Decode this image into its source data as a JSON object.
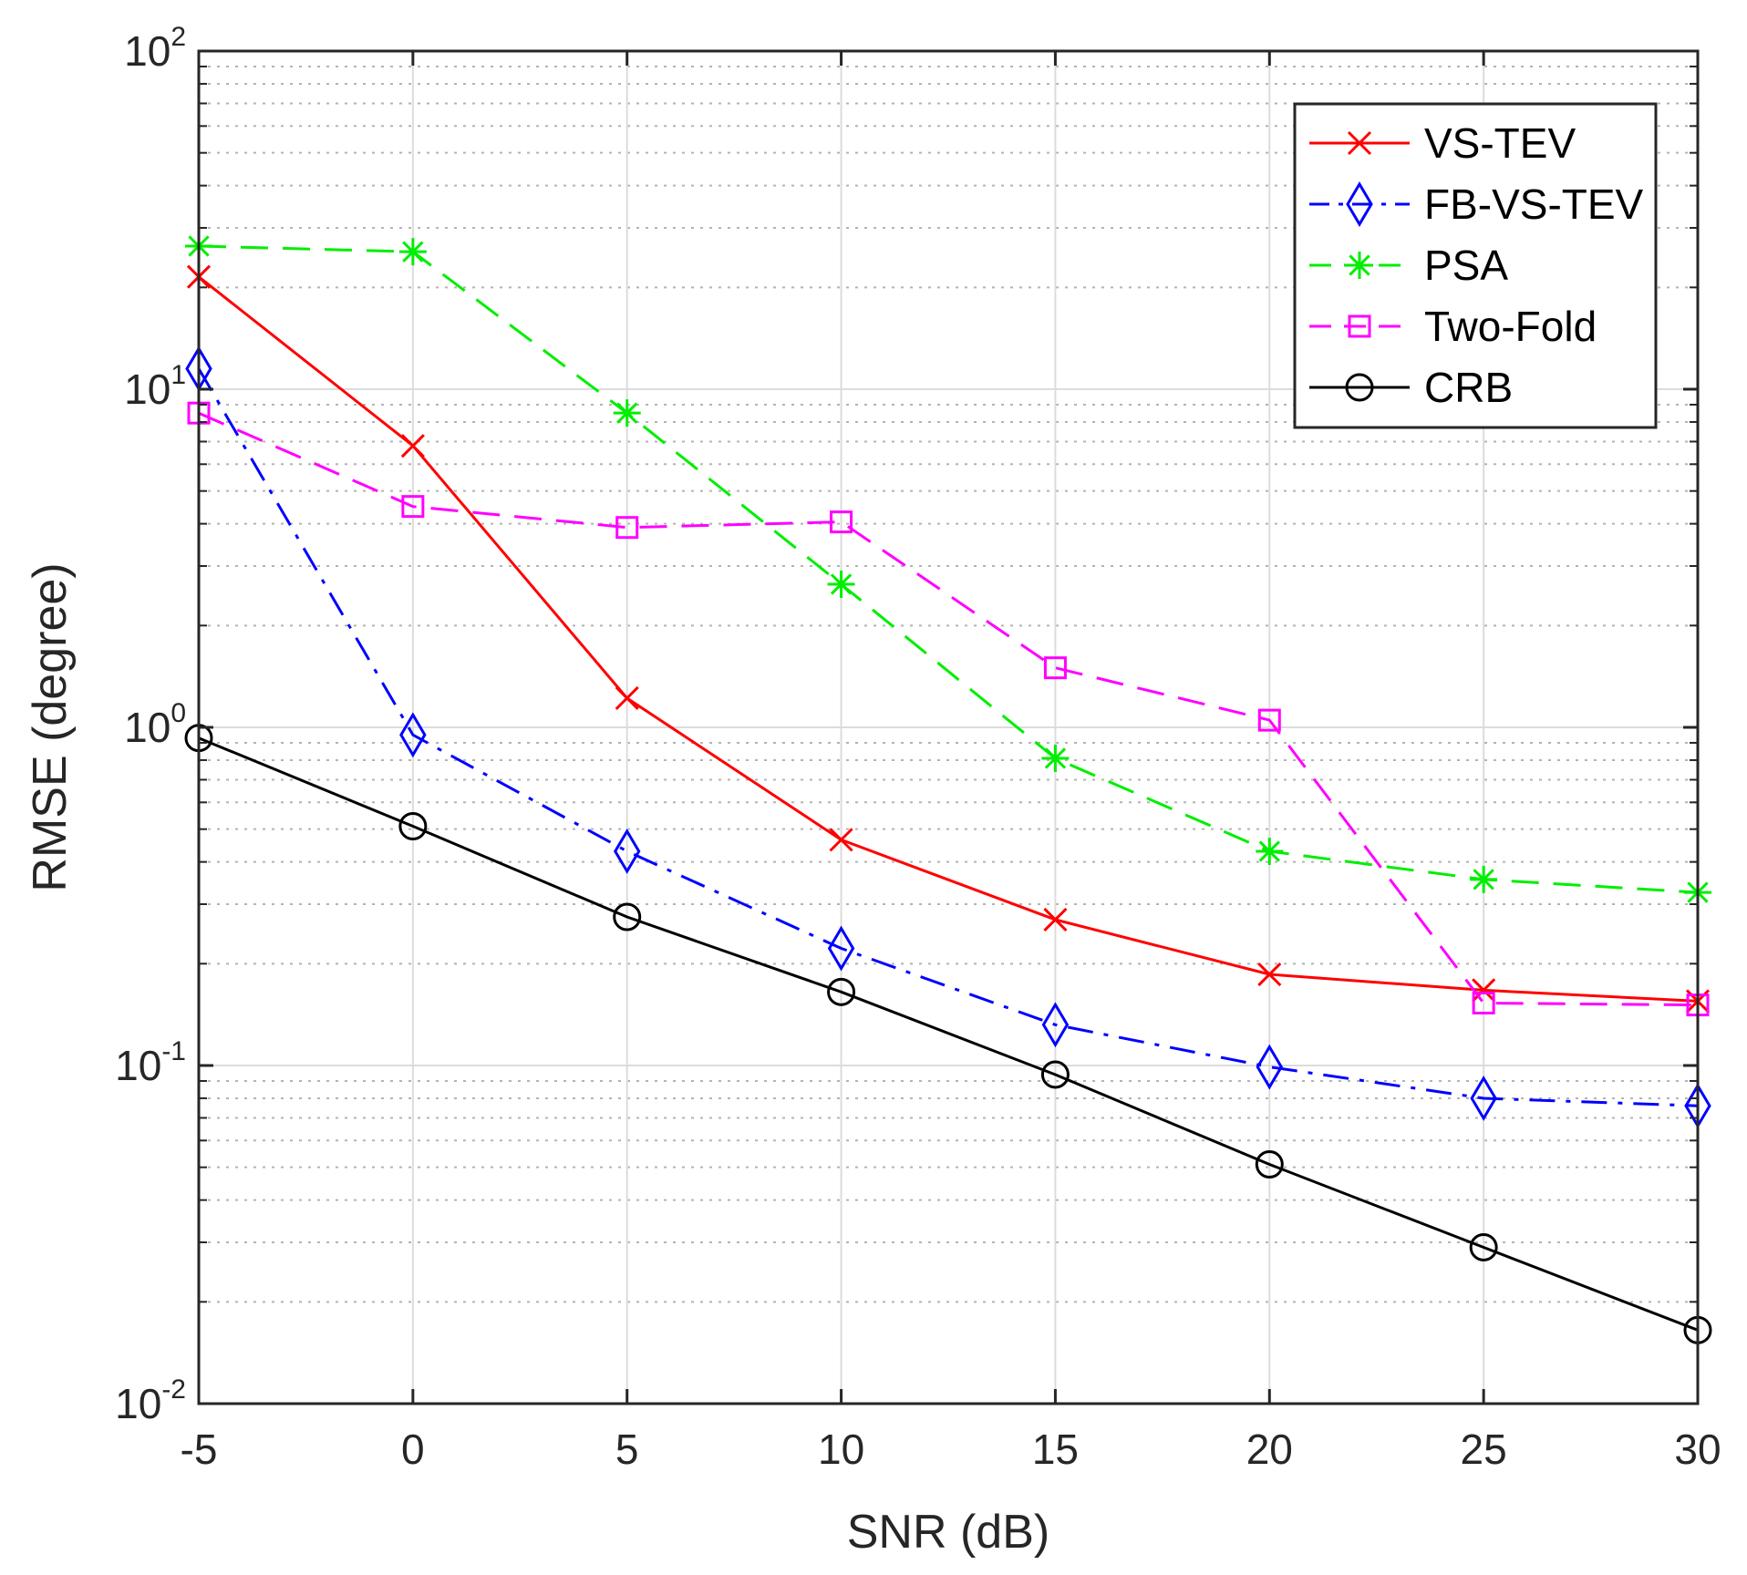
{
  "chart_data": {
    "type": "line",
    "title": "",
    "xlabel": "SNR (dB)",
    "ylabel": "RMSE (degree)",
    "xlim": [
      -5,
      30
    ],
    "xticks": [
      -5,
      0,
      5,
      10,
      15,
      20,
      25,
      30
    ],
    "ylim": [
      0.01,
      100
    ],
    "yscale": "log",
    "ytick_labels": [
      {
        "base": "10",
        "exp": "-2"
      },
      {
        "base": "10",
        "exp": "-1"
      },
      {
        "base": "10",
        "exp": "0"
      },
      {
        "base": "10",
        "exp": "1"
      },
      {
        "base": "10",
        "exp": "2"
      }
    ],
    "grid": true,
    "legend_position": "top-right",
    "x": [
      -5,
      0,
      5,
      10,
      15,
      20,
      25,
      30
    ],
    "series": [
      {
        "name": "VS-TEV",
        "color": "#ff0000",
        "dash": "solid",
        "marker": "x",
        "values": [
          21.5,
          6.8,
          1.22,
          0.465,
          0.27,
          0.186,
          0.167,
          0.155
        ]
      },
      {
        "name": "FB-VS-TEV",
        "color": "#0000ff",
        "dash": "dashdot",
        "marker": "diamond",
        "values": [
          11.5,
          0.95,
          0.43,
          0.222,
          0.132,
          0.099,
          0.08,
          0.076
        ]
      },
      {
        "name": "PSA",
        "color": "#00ee00",
        "dash": "dashed",
        "marker": "asterisk",
        "values": [
          26.5,
          25.5,
          8.5,
          2.65,
          0.81,
          0.43,
          0.355,
          0.325
        ]
      },
      {
        "name": "Two-Fold",
        "color": "#ff00ff",
        "dash": "dashed",
        "marker": "square",
        "values": [
          8.5,
          4.5,
          3.9,
          4.05,
          1.5,
          1.05,
          0.153,
          0.151
        ]
      },
      {
        "name": "CRB",
        "color": "#000000",
        "dash": "solid",
        "marker": "circle",
        "values": [
          0.93,
          0.51,
          0.275,
          0.165,
          0.094,
          0.051,
          0.029,
          0.0165
        ]
      }
    ]
  }
}
